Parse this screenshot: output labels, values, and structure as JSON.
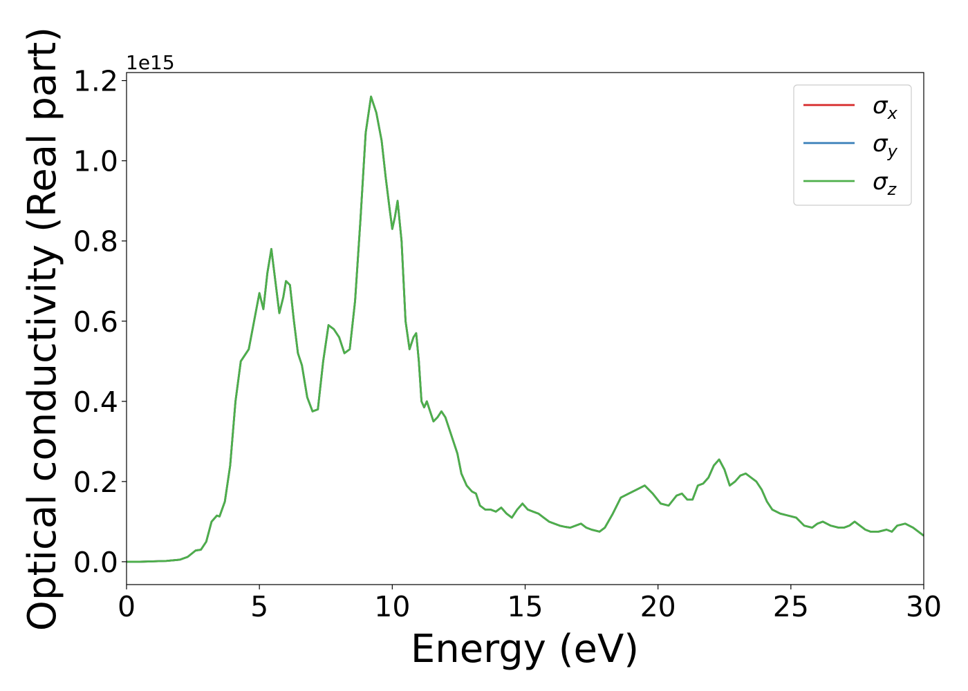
{
  "chart_data": {
    "type": "line",
    "title": "",
    "xlabel": "Energy (eV)",
    "ylabel": "Optical conductivity (Real part)",
    "offset_label": "1e15",
    "xlim": [
      0,
      30
    ],
    "ylim": [
      -0.057,
      1.22
    ],
    "x_ticks": [
      0,
      5,
      10,
      15,
      20,
      25,
      30
    ],
    "x_tick_labels": [
      "0",
      "5",
      "10",
      "15",
      "20",
      "25",
      "30"
    ],
    "y_ticks": [
      0.0,
      0.2,
      0.4,
      0.6,
      0.8,
      1.0,
      1.2
    ],
    "y_tick_labels": [
      "0.0",
      "0.2",
      "0.4",
      "0.6",
      "0.8",
      "1.0",
      "1.2"
    ],
    "grid": false,
    "legend_position": "top-right",
    "x": [
      0,
      0.5,
      1,
      1.5,
      2,
      2.3,
      2.6,
      2.8,
      3.0,
      3.2,
      3.4,
      3.5,
      3.7,
      3.9,
      4.1,
      4.3,
      4.5,
      4.6,
      4.8,
      5.0,
      5.15,
      5.3,
      5.45,
      5.6,
      5.75,
      5.9,
      6.0,
      6.15,
      6.3,
      6.45,
      6.6,
      6.8,
      7.0,
      7.2,
      7.4,
      7.6,
      7.8,
      8.0,
      8.2,
      8.4,
      8.6,
      8.8,
      9.0,
      9.2,
      9.4,
      9.6,
      9.75,
      9.9,
      10.0,
      10.1,
      10.2,
      10.35,
      10.5,
      10.65,
      10.8,
      10.9,
      11.0,
      11.1,
      11.2,
      11.3,
      11.4,
      11.55,
      11.7,
      11.85,
      12.0,
      12.15,
      12.3,
      12.45,
      12.6,
      12.8,
      13.0,
      13.15,
      13.3,
      13.5,
      13.7,
      13.9,
      14.1,
      14.3,
      14.5,
      14.7,
      14.9,
      15.1,
      15.3,
      15.5,
      15.7,
      15.9,
      16.1,
      16.3,
      16.5,
      16.7,
      16.9,
      17.1,
      17.3,
      17.5,
      17.8,
      18.0,
      18.3,
      18.6,
      18.9,
      19.2,
      19.5,
      19.8,
      20.1,
      20.4,
      20.7,
      20.9,
      21.1,
      21.3,
      21.5,
      21.7,
      21.9,
      22.1,
      22.3,
      22.5,
      22.7,
      22.9,
      23.1,
      23.3,
      23.5,
      23.7,
      23.9,
      24.1,
      24.3,
      24.6,
      24.9,
      25.2,
      25.5,
      25.8,
      26.0,
      26.2,
      26.5,
      26.8,
      27.0,
      27.2,
      27.4,
      27.6,
      27.8,
      28.0,
      28.3,
      28.6,
      28.8,
      29.0,
      29.3,
      29.6,
      30.0
    ],
    "series": [
      {
        "name": "σx",
        "color": "#d62728",
        "values": [
          0,
          0,
          0.001,
          0.002,
          0.005,
          0.012,
          0.028,
          0.03,
          0.05,
          0.1,
          0.115,
          0.113,
          0.15,
          0.24,
          0.4,
          0.5,
          0.52,
          0.53,
          0.6,
          0.67,
          0.63,
          0.72,
          0.78,
          0.7,
          0.62,
          0.66,
          0.7,
          0.69,
          0.6,
          0.52,
          0.49,
          0.41,
          0.375,
          0.38,
          0.5,
          0.59,
          0.58,
          0.56,
          0.52,
          0.53,
          0.65,
          0.85,
          1.07,
          1.16,
          1.12,
          1.05,
          0.96,
          0.88,
          0.83,
          0.86,
          0.9,
          0.8,
          0.6,
          0.53,
          0.56,
          0.57,
          0.5,
          0.4,
          0.385,
          0.4,
          0.38,
          0.35,
          0.36,
          0.375,
          0.36,
          0.33,
          0.3,
          0.27,
          0.22,
          0.19,
          0.175,
          0.17,
          0.14,
          0.13,
          0.13,
          0.125,
          0.135,
          0.12,
          0.11,
          0.13,
          0.145,
          0.13,
          0.125,
          0.12,
          0.11,
          0.1,
          0.095,
          0.09,
          0.087,
          0.085,
          0.09,
          0.095,
          0.085,
          0.08,
          0.075,
          0.085,
          0.12,
          0.16,
          0.17,
          0.18,
          0.19,
          0.17,
          0.145,
          0.14,
          0.165,
          0.17,
          0.155,
          0.155,
          0.19,
          0.195,
          0.21,
          0.24,
          0.255,
          0.23,
          0.19,
          0.2,
          0.215,
          0.22,
          0.21,
          0.2,
          0.18,
          0.15,
          0.13,
          0.12,
          0.115,
          0.11,
          0.09,
          0.085,
          0.095,
          0.1,
          0.09,
          0.085,
          0.085,
          0.09,
          0.1,
          0.09,
          0.08,
          0.075,
          0.075,
          0.08,
          0.075,
          0.09,
          0.095,
          0.085,
          0.065
        ]
      },
      {
        "name": "σy",
        "color": "#377eb8",
        "values": [
          0,
          0,
          0.001,
          0.002,
          0.005,
          0.012,
          0.028,
          0.03,
          0.05,
          0.1,
          0.115,
          0.113,
          0.15,
          0.24,
          0.4,
          0.5,
          0.52,
          0.53,
          0.6,
          0.67,
          0.63,
          0.72,
          0.78,
          0.7,
          0.62,
          0.66,
          0.7,
          0.69,
          0.6,
          0.52,
          0.49,
          0.41,
          0.375,
          0.38,
          0.5,
          0.59,
          0.58,
          0.56,
          0.52,
          0.53,
          0.65,
          0.85,
          1.07,
          1.16,
          1.12,
          1.05,
          0.96,
          0.88,
          0.83,
          0.86,
          0.9,
          0.8,
          0.6,
          0.53,
          0.56,
          0.57,
          0.5,
          0.4,
          0.385,
          0.4,
          0.38,
          0.35,
          0.36,
          0.375,
          0.36,
          0.33,
          0.3,
          0.27,
          0.22,
          0.19,
          0.175,
          0.17,
          0.14,
          0.13,
          0.13,
          0.125,
          0.135,
          0.12,
          0.11,
          0.13,
          0.145,
          0.13,
          0.125,
          0.12,
          0.11,
          0.1,
          0.095,
          0.09,
          0.087,
          0.085,
          0.09,
          0.095,
          0.085,
          0.08,
          0.075,
          0.085,
          0.12,
          0.16,
          0.17,
          0.18,
          0.19,
          0.17,
          0.145,
          0.14,
          0.165,
          0.17,
          0.155,
          0.155,
          0.19,
          0.195,
          0.21,
          0.24,
          0.255,
          0.23,
          0.19,
          0.2,
          0.215,
          0.22,
          0.21,
          0.2,
          0.18,
          0.15,
          0.13,
          0.12,
          0.115,
          0.11,
          0.09,
          0.085,
          0.095,
          0.1,
          0.09,
          0.085,
          0.085,
          0.09,
          0.1,
          0.09,
          0.08,
          0.075,
          0.075,
          0.08,
          0.075,
          0.09,
          0.095,
          0.085,
          0.065
        ]
      },
      {
        "name": "σz",
        "color": "#4daf4a",
        "values": [
          0,
          0,
          0.001,
          0.002,
          0.005,
          0.012,
          0.028,
          0.03,
          0.05,
          0.1,
          0.115,
          0.113,
          0.15,
          0.24,
          0.4,
          0.5,
          0.52,
          0.53,
          0.6,
          0.67,
          0.63,
          0.72,
          0.78,
          0.7,
          0.62,
          0.66,
          0.7,
          0.69,
          0.6,
          0.52,
          0.49,
          0.41,
          0.375,
          0.38,
          0.5,
          0.59,
          0.58,
          0.56,
          0.52,
          0.53,
          0.65,
          0.85,
          1.07,
          1.16,
          1.12,
          1.05,
          0.96,
          0.88,
          0.83,
          0.86,
          0.9,
          0.8,
          0.6,
          0.53,
          0.56,
          0.57,
          0.5,
          0.4,
          0.385,
          0.4,
          0.38,
          0.35,
          0.36,
          0.375,
          0.36,
          0.33,
          0.3,
          0.27,
          0.22,
          0.19,
          0.175,
          0.17,
          0.14,
          0.13,
          0.13,
          0.125,
          0.135,
          0.12,
          0.11,
          0.13,
          0.145,
          0.13,
          0.125,
          0.12,
          0.11,
          0.1,
          0.095,
          0.09,
          0.087,
          0.085,
          0.09,
          0.095,
          0.085,
          0.08,
          0.075,
          0.085,
          0.12,
          0.16,
          0.17,
          0.18,
          0.19,
          0.17,
          0.145,
          0.14,
          0.165,
          0.17,
          0.155,
          0.155,
          0.19,
          0.195,
          0.21,
          0.24,
          0.255,
          0.23,
          0.19,
          0.2,
          0.215,
          0.22,
          0.21,
          0.2,
          0.18,
          0.15,
          0.13,
          0.12,
          0.115,
          0.11,
          0.09,
          0.085,
          0.095,
          0.1,
          0.09,
          0.085,
          0.085,
          0.09,
          0.1,
          0.09,
          0.08,
          0.075,
          0.075,
          0.08,
          0.075,
          0.09,
          0.095,
          0.085,
          0.065
        ]
      }
    ]
  }
}
